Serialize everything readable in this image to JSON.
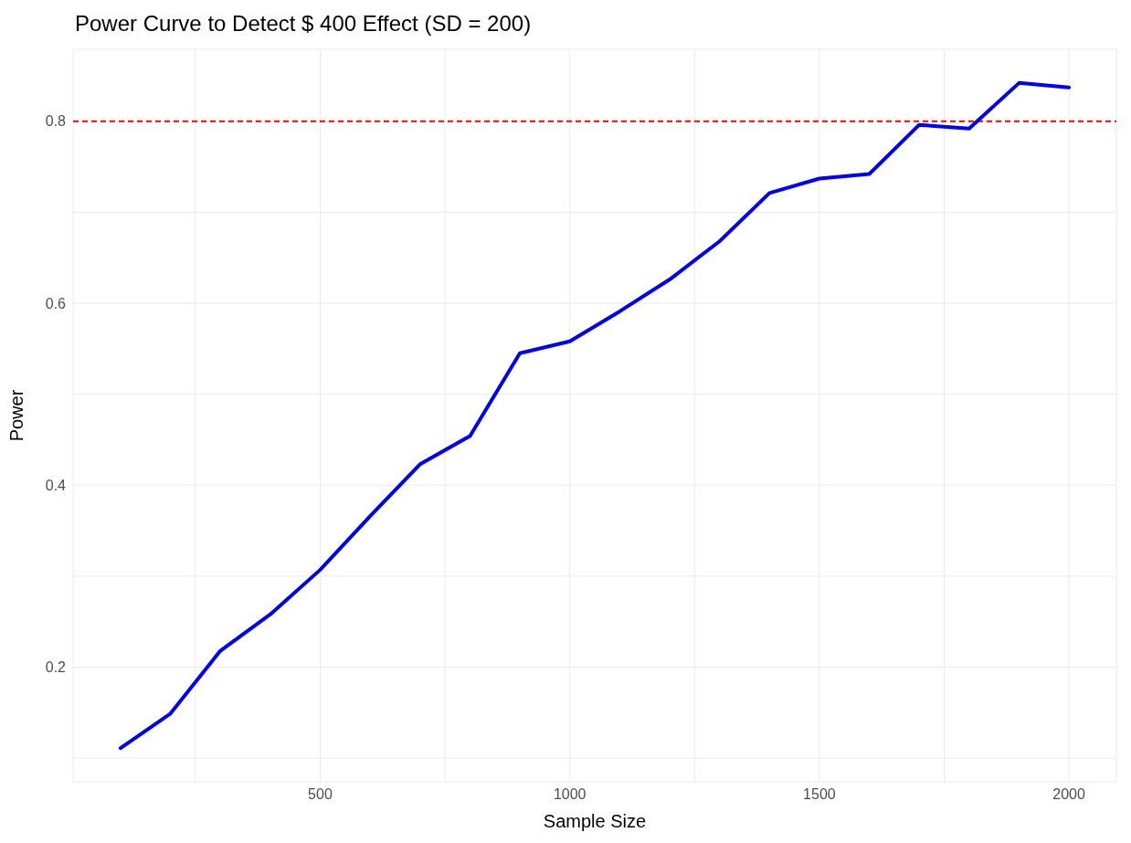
{
  "chart_data": {
    "type": "line",
    "title": "Power Curve to Detect $ 400  Effect (SD = 200)",
    "xlabel": "Sample Size",
    "ylabel": "Power",
    "x": [
      100,
      200,
      300,
      400,
      500,
      600,
      700,
      800,
      900,
      1000,
      1100,
      1200,
      1300,
      1400,
      1500,
      1600,
      1700,
      1800,
      1900,
      2000
    ],
    "series": [
      {
        "color": "#0000ff",
        "values": [
          0.111,
          0.149,
          0.218,
          0.258,
          0.307,
          0.366,
          0.423,
          0.454,
          0.545,
          0.558,
          0.591,
          0.626,
          0.668,
          0.721,
          0.737,
          0.742,
          0.796,
          0.792,
          0.842,
          0.837
        ]
      }
    ],
    "xlim": [
      5,
      2095
    ],
    "xticks": [
      {
        "value": 250,
        "label": null
      },
      500,
      {
        "value": 750,
        "label": null
      },
      1000,
      {
        "value": 1250,
        "label": null
      },
      1500,
      {
        "value": 1750,
        "label": null
      },
      2000
    ],
    "ylim": [
      0.074,
      0.879
    ],
    "yticks": [
      {
        "value": 0.1,
        "label": null
      },
      0.2,
      {
        "value": 0.3,
        "label": null
      },
      0.4,
      {
        "value": 0.5,
        "label": null
      },
      0.6,
      {
        "value": 0.7,
        "label": null
      },
      0.8
    ],
    "ref_lines": [
      {
        "axis": "y",
        "value": 0.8,
        "color": "#ff0000",
        "line_style": "dashed"
      }
    ],
    "grid": true,
    "marker": "none",
    "line_style": "solid"
  }
}
